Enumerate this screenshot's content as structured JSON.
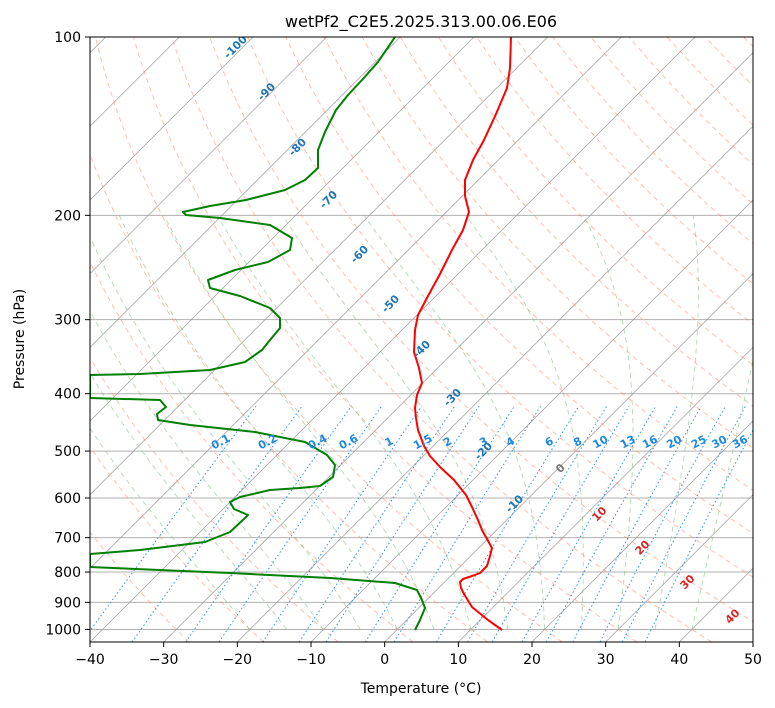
{
  "chart_data": {
    "type": "line",
    "subtype": "skew-T log-P diagram",
    "title": "wetPf2_C2E5.2025.313.00.06.E06",
    "xlabel": "Temperature (°C)",
    "ylabel": "Pressure (hPa)",
    "xlim": [
      -40,
      50
    ],
    "ylim": [
      1050,
      100
    ],
    "yscale": "log",
    "x_ticks": [
      "−40",
      "−30",
      "−20",
      "−10",
      "0",
      "10",
      "20",
      "30",
      "40",
      "50"
    ],
    "y_ticks": [
      "100",
      "200",
      "300",
      "400",
      "500",
      "600",
      "700",
      "800",
      "900",
      "1000"
    ],
    "grid": true,
    "colors": {
      "temperature": "#ff0000",
      "dewpoint": "#008000",
      "isotherm": "#999999",
      "dry_adiabat": "#ff8060",
      "moist_adiabat": "#80c080",
      "mixing_ratio": "#1e88e5",
      "label_blue": "#1f77b4",
      "label_red": "#d62728"
    },
    "series": [],
    "dashed_labels": {
      "blue": [
        "-100",
        "-90",
        "-80",
        "-70",
        "-60",
        "-50",
        "-40",
        "-30",
        "-20",
        "-10"
      ],
      "gray": [
        "0"
      ],
      "red": [
        "10",
        "20",
        "30",
        "40"
      ]
    },
    "mixing_ratio_labels": [
      "0.1",
      "0.2",
      "0.4",
      "0.6",
      "1",
      "1.5",
      "2",
      "3",
      "4",
      "6",
      "8",
      "10",
      "13",
      "16",
      "20",
      "25",
      "30",
      "36"
    ]
  }
}
